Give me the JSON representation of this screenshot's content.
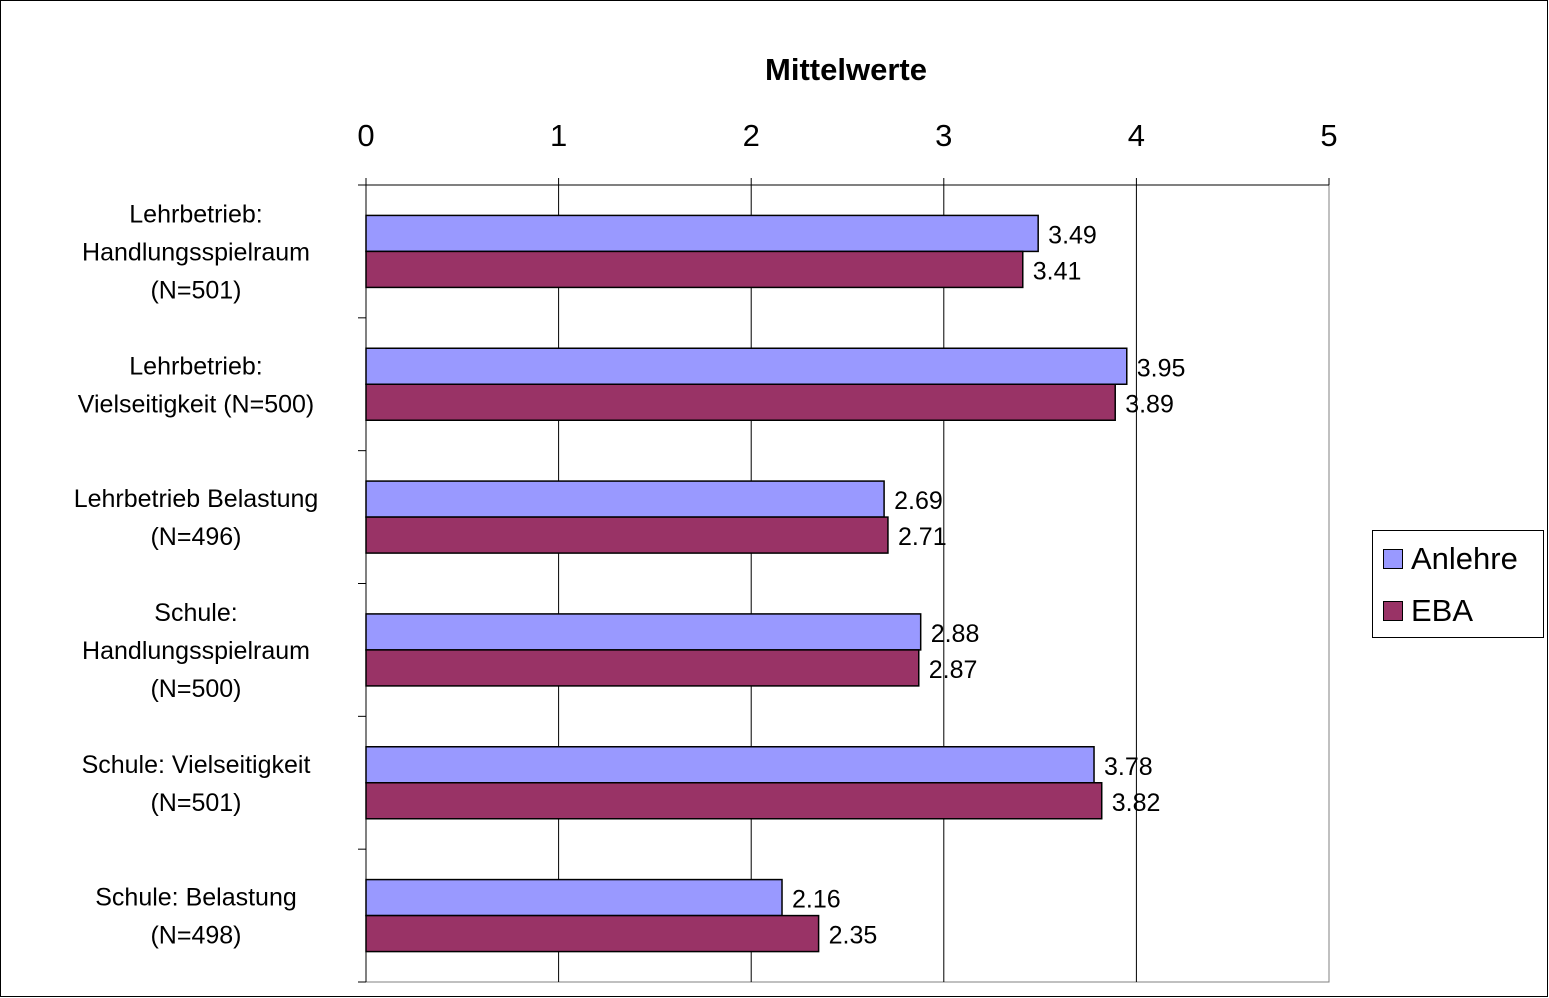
{
  "chart_data": {
    "type": "bar",
    "orientation": "horizontal",
    "title": "Mittelwerte",
    "xlabel": "",
    "ylabel": "",
    "xlim": [
      0,
      5
    ],
    "x_ticks": [
      "0",
      "1",
      "2",
      "3",
      "4",
      "5"
    ],
    "grid": "vertical",
    "legend_position": "right",
    "categories": [
      [
        "Lehrbetrieb:",
        "Handlungsspielraum",
        "(N=501)"
      ],
      [
        "Lehrbetrieb:",
        "Vielseitigkeit (N=500)"
      ],
      [
        "Lehrbetrieb Belastung",
        "(N=496)"
      ],
      [
        "Schule:",
        "Handlungsspielraum",
        "(N=500)"
      ],
      [
        "Schule: Vielseitigkeit",
        "(N=501)"
      ],
      [
        "Schule: Belastung",
        "(N=498)"
      ]
    ],
    "series": [
      {
        "name": "Anlehre",
        "color": "#9999ff",
        "values": [
          3.49,
          3.95,
          2.69,
          2.88,
          3.78,
          2.16
        ],
        "labels": [
          "3.49",
          "3.95",
          "2.69",
          "2.88",
          "3.78",
          "2.16"
        ]
      },
      {
        "name": "EBA",
        "color": "#993366",
        "values": [
          3.41,
          3.89,
          2.71,
          2.87,
          3.82,
          2.35
        ],
        "labels": [
          "3.41",
          "3.89",
          "2.71",
          "2.87",
          "3.82",
          "2.35"
        ]
      }
    ]
  }
}
